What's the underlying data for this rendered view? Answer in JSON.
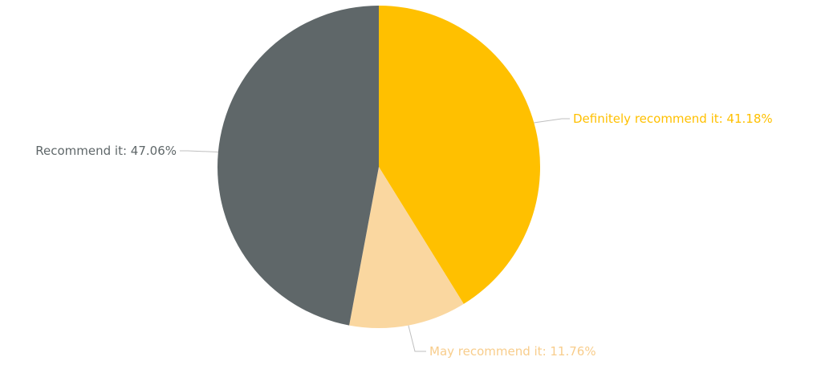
{
  "chart_data": {
    "type": "pie",
    "start_angle_deg": 0,
    "direction": "clockwise",
    "slices": [
      {
        "label": "Definitely recommend it",
        "value": 41.18,
        "display": "41.18%",
        "color": "#FFC000",
        "label_color": "#FFC000"
      },
      {
        "label": "May recommend it",
        "value": 11.76,
        "display": "11.76%",
        "color": "#FAD7A0",
        "label_color": "#F8CD8C"
      },
      {
        "label": "Recommend it",
        "value": 47.06,
        "display": "47.06%",
        "color": "#5F6769",
        "label_color": "#5F6769"
      }
    ],
    "leader_color": "#BFBFBF"
  }
}
